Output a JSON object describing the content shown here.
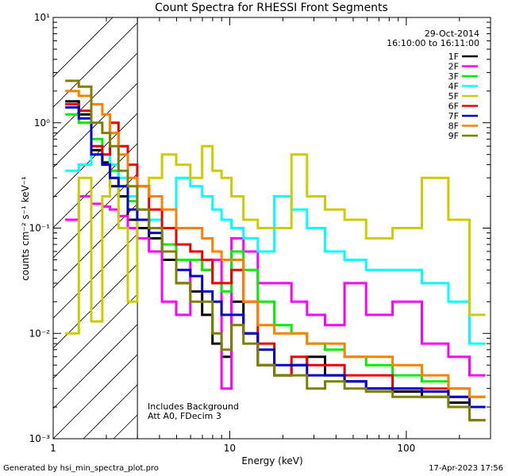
{
  "chart_data": {
    "type": "line",
    "title": "Count Spectra for RHESSI Front Segments",
    "xlabel": "Energy (keV)",
    "ylabel": "counts cm⁻² s⁻¹ keV⁻¹",
    "xscale": "log",
    "yscale": "log",
    "xlim": [
      1,
      300
    ],
    "ylim": [
      0.001,
      10
    ],
    "x_tick_labels": [
      "1",
      "10",
      "100"
    ],
    "y_tick_labels": [
      "10⁻³",
      "10⁻²",
      "10⁻¹",
      "10⁰",
      "10¹"
    ],
    "shaded_region_keV": [
      1,
      3
    ],
    "date": "29-Oct-2014",
    "time_range": "16:10:00 to 16:11:00",
    "annotations": [
      "Includes Background",
      "Att A0, FDecim 3"
    ],
    "series": [
      {
        "name": "1F",
        "color": "#000000",
        "x": [
          1.3,
          1.5,
          1.8,
          2.0,
          2.2,
          2.5,
          2.8,
          3.2,
          3.8,
          4.5,
          5.5,
          6.5,
          7.5,
          8.5,
          9.5,
          11,
          13,
          16,
          20,
          25,
          30,
          40,
          50,
          70,
          100,
          150,
          200,
          260
        ],
        "values": [
          1.6,
          1.2,
          0.55,
          0.42,
          0.25,
          0.2,
          0.12,
          0.1,
          0.08,
          0.05,
          0.03,
          0.025,
          0.015,
          0.008,
          0.006,
          0.02,
          0.01,
          0.005,
          0.004,
          0.005,
          0.006,
          0.004,
          0.0035,
          0.003,
          0.0028,
          0.0025,
          0.0022,
          0.002
        ]
      },
      {
        "name": "2F",
        "color": "#ff00ff",
        "x": [
          1.3,
          1.5,
          1.8,
          2.0,
          2.2,
          2.5,
          2.8,
          3.2,
          3.8,
          4.5,
          5.5,
          6.5,
          7.5,
          8.5,
          9.5,
          11,
          13,
          16,
          20,
          25,
          30,
          40,
          50,
          70,
          100,
          150,
          200,
          260
        ],
        "values": [
          0.12,
          0.2,
          0.17,
          0.16,
          0.15,
          0.13,
          0.1,
          0.08,
          0.06,
          0.02,
          0.015,
          0.05,
          0.04,
          0.05,
          0.003,
          0.08,
          0.06,
          0.03,
          0.03,
          0.02,
          0.015,
          0.012,
          0.03,
          0.015,
          0.02,
          0.008,
          0.006,
          0.004
        ]
      },
      {
        "name": "3F",
        "color": "#00ee00",
        "x": [
          1.3,
          1.5,
          1.8,
          2.0,
          2.2,
          2.5,
          2.8,
          3.2,
          3.8,
          4.5,
          5.5,
          6.5,
          7.5,
          8.5,
          9.5,
          11,
          13,
          16,
          20,
          25,
          30,
          40,
          50,
          70,
          100,
          150,
          200,
          260
        ],
        "values": [
          1.2,
          1.0,
          0.7,
          0.5,
          0.35,
          0.25,
          0.18,
          0.15,
          0.1,
          0.07,
          0.05,
          0.05,
          0.04,
          0.03,
          0.025,
          0.06,
          0.04,
          0.02,
          0.012,
          0.01,
          0.008,
          0.007,
          0.006,
          0.005,
          0.004,
          0.0035,
          0.003,
          0.0025
        ]
      },
      {
        "name": "4F",
        "color": "#00ffff",
        "x": [
          1.3,
          1.5,
          1.8,
          2.0,
          2.2,
          2.5,
          2.8,
          3.2,
          3.8,
          4.5,
          5.5,
          6.5,
          7.5,
          8.5,
          9.5,
          11,
          13,
          16,
          20,
          25,
          30,
          40,
          50,
          70,
          100,
          150,
          200,
          260
        ],
        "values": [
          0.35,
          0.4,
          0.6,
          0.5,
          0.4,
          0.3,
          0.2,
          0.15,
          0.12,
          0.1,
          0.3,
          0.25,
          0.2,
          0.15,
          0.12,
          0.1,
          0.08,
          0.06,
          0.2,
          0.15,
          0.1,
          0.06,
          0.05,
          0.04,
          0.04,
          0.03,
          0.02,
          0.008
        ]
      },
      {
        "name": "5F",
        "color": "#cccc00",
        "x": [
          1.3,
          1.5,
          1.8,
          2.0,
          2.2,
          2.5,
          2.8,
          3.2,
          3.8,
          4.5,
          5.5,
          6.5,
          7.5,
          8.5,
          9.5,
          11,
          13,
          16,
          20,
          25,
          30,
          40,
          50,
          70,
          100,
          150,
          200,
          260
        ],
        "values": [
          0.01,
          0.3,
          0.013,
          0.2,
          0.3,
          0.1,
          0.02,
          0.25,
          0.3,
          0.5,
          0.4,
          0.3,
          0.6,
          0.35,
          0.3,
          0.2,
          0.12,
          0.1,
          0.1,
          0.5,
          0.2,
          0.15,
          0.12,
          0.08,
          0.1,
          0.3,
          0.12,
          0.015
        ]
      },
      {
        "name": "6F",
        "color": "#ee0000",
        "x": [
          1.3,
          1.5,
          1.8,
          2.0,
          2.2,
          2.5,
          2.8,
          3.2,
          3.8,
          4.5,
          5.5,
          6.5,
          7.5,
          8.5,
          9.5,
          11,
          13,
          16,
          20,
          25,
          30,
          40,
          50,
          70,
          100,
          150,
          200,
          260
        ],
        "values": [
          1.5,
          1.3,
          0.6,
          0.5,
          1.0,
          0.6,
          0.4,
          0.25,
          0.15,
          0.1,
          0.07,
          0.06,
          0.05,
          0.03,
          0.03,
          0.04,
          0.02,
          0.008,
          0.004,
          0.006,
          0.005,
          0.005,
          0.004,
          0.004,
          0.003,
          0.003,
          0.0025,
          0.0015
        ]
      },
      {
        "name": "7F",
        "color": "#0000cc",
        "x": [
          1.3,
          1.5,
          1.8,
          2.0,
          2.2,
          2.5,
          2.8,
          3.2,
          3.8,
          4.5,
          5.5,
          6.5,
          7.5,
          8.5,
          9.5,
          11,
          13,
          16,
          20,
          25,
          30,
          40,
          50,
          70,
          100,
          150,
          200,
          260
        ],
        "values": [
          1.4,
          1.1,
          0.5,
          0.4,
          0.3,
          0.25,
          0.15,
          0.12,
          0.09,
          0.06,
          0.04,
          0.035,
          0.025,
          0.02,
          0.015,
          0.015,
          0.01,
          0.007,
          0.005,
          0.005,
          0.004,
          0.004,
          0.0035,
          0.003,
          0.003,
          0.0028,
          0.0025,
          0.002
        ]
      },
      {
        "name": "8F",
        "color": "#ff8000",
        "x": [
          1.3,
          1.5,
          1.8,
          2.0,
          2.2,
          2.5,
          2.8,
          3.2,
          3.8,
          4.5,
          5.5,
          6.5,
          7.5,
          8.5,
          9.5,
          11,
          13,
          16,
          20,
          25,
          30,
          40,
          50,
          70,
          100,
          150,
          200,
          260
        ],
        "values": [
          2.0,
          1.8,
          1.5,
          1.2,
          0.8,
          0.5,
          0.3,
          0.25,
          0.2,
          0.15,
          0.1,
          0.1,
          0.08,
          0.06,
          0.05,
          0.05,
          0.02,
          0.012,
          0.01,
          0.01,
          0.008,
          0.008,
          0.006,
          0.006,
          0.005,
          0.004,
          0.003,
          0.0025
        ]
      },
      {
        "name": "9F",
        "color": "#808000",
        "x": [
          1.3,
          1.5,
          1.8,
          2.0,
          2.2,
          2.5,
          2.8,
          3.2,
          3.8,
          4.5,
          5.5,
          6.5,
          7.5,
          8.5,
          9.5,
          11,
          13,
          16,
          20,
          25,
          30,
          40,
          50,
          70,
          100,
          150,
          200,
          260
        ],
        "values": [
          2.5,
          2.2,
          1.0,
          0.8,
          0.6,
          0.35,
          0.25,
          0.15,
          0.1,
          0.06,
          0.03,
          0.02,
          0.02,
          0.01,
          0.007,
          0.012,
          0.008,
          0.005,
          0.004,
          0.004,
          0.003,
          0.0035,
          0.003,
          0.0028,
          0.0025,
          0.0025,
          0.002,
          0.0015
        ]
      }
    ]
  },
  "footer": {
    "left": "Generated by hsi_min_spectra_plot.pro",
    "right": "17-Apr-2023 17:56"
  }
}
